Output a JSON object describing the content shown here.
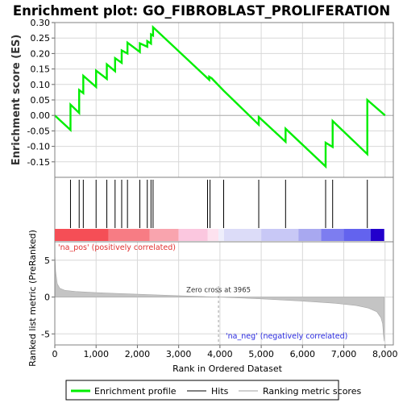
{
  "chart_data": {
    "type": "line",
    "title": "Enrichment plot: GO_FIBROBLAST_PROLIFERATION",
    "enrichment_panel": {
      "ylabel": "Enrichment score (ES)",
      "ylim": [
        -0.2,
        0.3
      ],
      "yticks": [
        -0.15,
        -0.1,
        -0.05,
        0.0,
        0.05,
        0.1,
        0.15,
        0.2,
        0.25,
        0.3
      ],
      "ytick_labels": [
        "-0.15",
        "-0.10",
        "-0.05",
        "0.00",
        "0.05",
        "0.10",
        "0.15",
        "0.20",
        "0.25",
        "0.30"
      ],
      "grid": true,
      "series": [
        {
          "name": "Enrichment profile",
          "color": "#00ee00",
          "x": [
            0,
            380,
            380,
            590,
            590,
            690,
            690,
            1000,
            1000,
            1260,
            1260,
            1460,
            1460,
            1620,
            1620,
            1760,
            1760,
            2060,
            2060,
            2240,
            2240,
            2330,
            2330,
            2380,
            2380,
            3740,
            3740,
            3800,
            4090,
            4940,
            4940,
            5590,
            5590,
            6560,
            6560,
            6730,
            6730,
            7570,
            7570,
            8000
          ],
          "y": [
            0.0,
            -0.047,
            0.035,
            0.008,
            0.082,
            0.072,
            0.128,
            0.092,
            0.145,
            0.118,
            0.165,
            0.143,
            0.185,
            0.17,
            0.21,
            0.2,
            0.235,
            0.205,
            0.233,
            0.222,
            0.24,
            0.232,
            0.262,
            0.258,
            0.285,
            0.115,
            0.125,
            0.12,
            0.08,
            -0.03,
            -0.005,
            -0.085,
            -0.043,
            -0.165,
            -0.088,
            -0.102,
            -0.018,
            -0.125,
            0.05,
            0.0
          ]
        }
      ]
    },
    "hits_panel": {
      "series_name": "Hits",
      "hit_positions": [
        380,
        590,
        690,
        1000,
        1260,
        1460,
        1620,
        1760,
        2060,
        2240,
        2330,
        2380,
        3700,
        3760,
        4090,
        4940,
        5590,
        6560,
        6730,
        7570
      ]
    },
    "ranking_panel": {
      "ylabel": "Ranked list metric (PreRanked)",
      "xlabel": "Rank in Ordered Dataset",
      "series_name": "Ranking metric scores",
      "ylim": [
        -6.5,
        7.5
      ],
      "yticks": [
        -5,
        0,
        5
      ],
      "ytick_labels": [
        "-5",
        "0",
        "5"
      ],
      "xlim": [
        0,
        8200
      ],
      "xticks": [
        0,
        1000,
        2000,
        3000,
        4000,
        5000,
        6000,
        7000,
        8000
      ],
      "xtick_labels": [
        "0",
        "1,000",
        "2,000",
        "3,000",
        "4,000",
        "5,000",
        "6,000",
        "7,000",
        "8,000"
      ],
      "zero_cross": 3965,
      "zero_cross_label": "Zero cross at 3965",
      "pos_label": "'na_pos' (positively correlated)",
      "neg_label": "'na_neg' (negatively correlated)",
      "total_genes": 7980,
      "profile": {
        "x": [
          0,
          20,
          60,
          120,
          250,
          500,
          1000,
          2000,
          3000,
          3965,
          5000,
          6000,
          6800,
          7300,
          7600,
          7800,
          7900,
          7940,
          7960,
          7980
        ],
        "y": [
          6.0,
          3.5,
          1.8,
          1.2,
          0.9,
          0.75,
          0.6,
          0.38,
          0.18,
          0.0,
          -0.25,
          -0.55,
          -0.85,
          -1.15,
          -1.5,
          -2.0,
          -2.8,
          -3.6,
          -5.0,
          -6.0
        ]
      }
    },
    "color_bar": {
      "segments": [
        {
          "from": 0,
          "to": 1300,
          "color": "#f54e56"
        },
        {
          "from": 1300,
          "to": 2300,
          "color": "#f77c84"
        },
        {
          "from": 2300,
          "to": 3000,
          "color": "#f9a4ae"
        },
        {
          "from": 3000,
          "to": 3700,
          "color": "#fbc7df"
        },
        {
          "from": 3700,
          "to": 3965,
          "color": "#fde2ef"
        },
        {
          "from": 3965,
          "to": 4100,
          "color": "#eeeefb"
        },
        {
          "from": 4100,
          "to": 5000,
          "color": "#dcdcf8"
        },
        {
          "from": 5000,
          "to": 5900,
          "color": "#c8c8f6"
        },
        {
          "from": 5900,
          "to": 6450,
          "color": "#a8a8f0"
        },
        {
          "from": 6450,
          "to": 7000,
          "color": "#7d7df0"
        },
        {
          "from": 7000,
          "to": 7650,
          "color": "#6363ee"
        },
        {
          "from": 7650,
          "to": 7980,
          "color": "#2200cc"
        }
      ]
    },
    "legend": {
      "placement": "bottom",
      "entries": [
        {
          "name": "Enrichment profile",
          "color": "#00ee00"
        },
        {
          "name": "Hits",
          "color": "#808080"
        },
        {
          "name": "Ranking metric scores",
          "color": "#cfcfcf"
        }
      ]
    },
    "colors": {
      "profile": "#00ee00",
      "pos_label": "#e03030",
      "neg_label": "#2a2ae0",
      "grid": "#d8d8d8"
    }
  }
}
